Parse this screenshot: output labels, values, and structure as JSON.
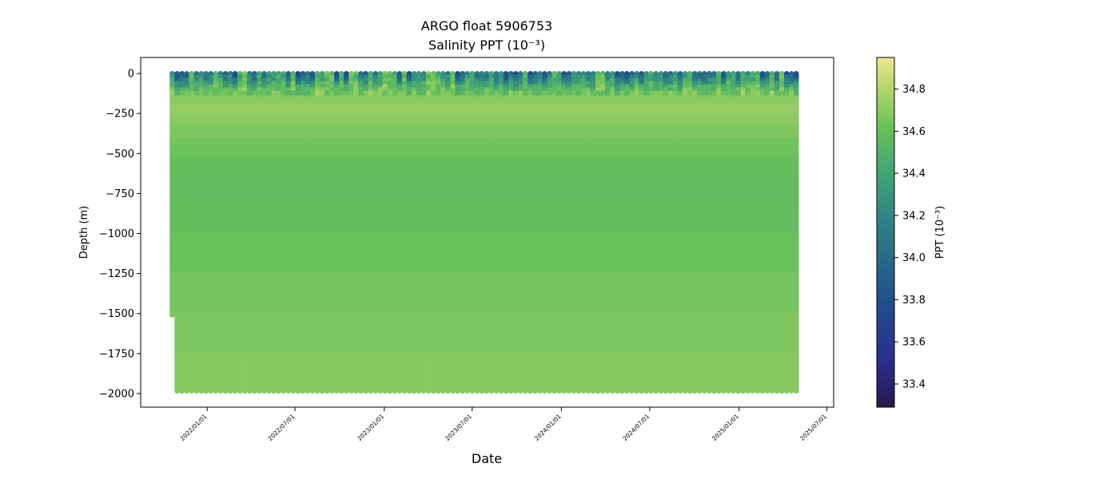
{
  "chart_data": {
    "type": "scatter",
    "title": "ARGO float 5906753",
    "subtitle": "Salinity PPT (10⁻³)",
    "xlabel": "Date",
    "ylabel": "Depth (m)",
    "colorbar_label": "PPT (10⁻³)",
    "colormap": "haline",
    "x_axis_type": "date",
    "xlim": [
      "2021-08-17",
      "2025-07-15"
    ],
    "ylim": [
      -2085,
      100
    ],
    "color_lim": [
      33.29,
      34.95
    ],
    "grid": false,
    "x_ticks": [
      {
        "date": "2022-01-01",
        "label": "2022/01/01"
      },
      {
        "date": "2022-07-01",
        "label": "2022/07/01"
      },
      {
        "date": "2023-01-01",
        "label": "2023/01/01"
      },
      {
        "date": "2023-07-01",
        "label": "2023/07/01"
      },
      {
        "date": "2024-01-01",
        "label": "2024/01/01"
      },
      {
        "date": "2024-07-01",
        "label": "2024/07/01"
      },
      {
        "date": "2025-01-01",
        "label": "2025/01/01"
      },
      {
        "date": "2025-07-01",
        "label": "2025/07/01"
      }
    ],
    "y_ticks": [
      {
        "value": 0,
        "label": "0"
      },
      {
        "value": -250,
        "label": "−250"
      },
      {
        "value": -500,
        "label": "−500"
      },
      {
        "value": -750,
        "label": "−750"
      },
      {
        "value": -1000,
        "label": "−1000"
      },
      {
        "value": -1250,
        "label": "−1250"
      },
      {
        "value": -1500,
        "label": "−1500"
      },
      {
        "value": -1750,
        "label": "−1750"
      },
      {
        "value": -2000,
        "label": "−2000"
      }
    ],
    "color_ticks": [
      {
        "value": 33.4,
        "label": "33.4"
      },
      {
        "value": 33.6,
        "label": "33.6"
      },
      {
        "value": 33.8,
        "label": "33.8"
      },
      {
        "value": 34.0,
        "label": "34.0"
      },
      {
        "value": 34.2,
        "label": "34.2"
      },
      {
        "value": 34.4,
        "label": "34.4"
      },
      {
        "value": 34.6,
        "label": "34.6"
      },
      {
        "value": 34.8,
        "label": "34.8"
      }
    ],
    "profiles": {
      "first_date": "2021-10-21",
      "last_date": "2025-04-29",
      "first_profile_max_depth": -1510,
      "typical_max_depth": -1985,
      "surface_depth": 0
    },
    "salinity_by_depth": [
      {
        "depth": 0,
        "salinity": 34.15
      },
      {
        "depth": -50,
        "salinity": 34.3
      },
      {
        "depth": -100,
        "salinity": 34.55
      },
      {
        "depth": -200,
        "salinity": 34.75
      },
      {
        "depth": -300,
        "salinity": 34.7
      },
      {
        "depth": -500,
        "salinity": 34.62
      },
      {
        "depth": -750,
        "salinity": 34.58
      },
      {
        "depth": -1000,
        "salinity": 34.6
      },
      {
        "depth": -1500,
        "salinity": 34.66
      },
      {
        "depth": -2000,
        "salinity": 34.7
      }
    ]
  }
}
